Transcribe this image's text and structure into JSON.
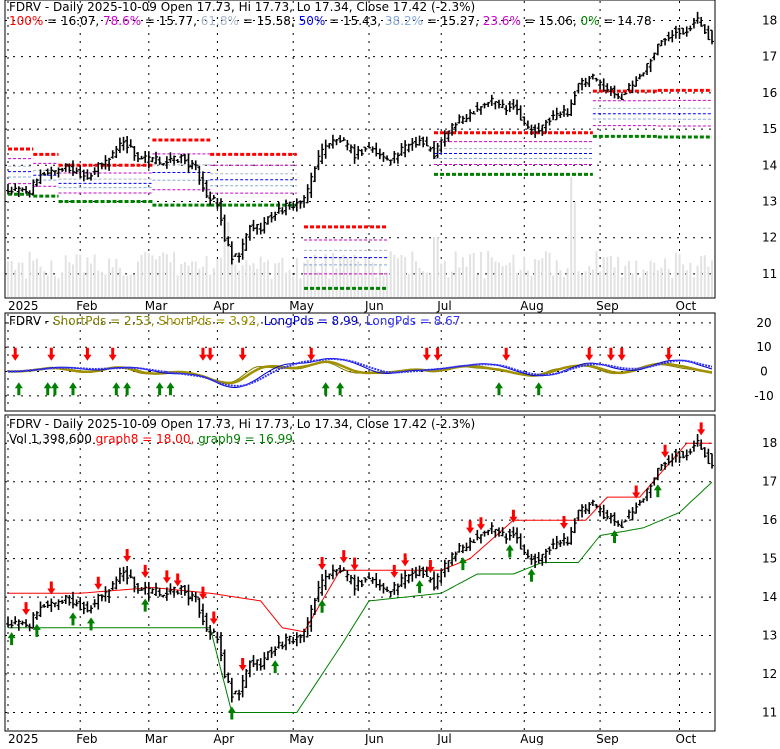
{
  "ticker": "FDRV",
  "colors": {
    "fib_100": "#ff0000",
    "fib_786": "#cc00cc",
    "fib_618": "#a9b6c8",
    "fib_50": "#0000ff",
    "fib_382": "#87a9d8",
    "fib_236": "#cc00cc",
    "fib_0": "#008000",
    "short1": "#808000",
    "short2": "#a09000",
    "long1": "#0000cc",
    "long2": "#3333ff",
    "graph8": "#ff0000",
    "graph9": "#008000",
    "up_arrow": "#008000",
    "down_arrow": "#ff0000"
  },
  "chart_data": [
    {
      "type": "ohlc",
      "panel": "price-fibonacci",
      "title_parts": {
        "prefix": "FDRV - Daily 2025-10-09 Open 17.73, Hi 17.73, Lo 17.34, Close 17.42 (-2.3%)"
      },
      "fib_legend": [
        {
          "label": "100%",
          "value": "= 16.07,",
          "color_key": "fib_100"
        },
        {
          "label": "78.6%",
          "value": "= 15.77,",
          "color_key": "fib_786"
        },
        {
          "label": "61.8%",
          "value": "= 15.58,",
          "color_key": "fib_618"
        },
        {
          "label": "50%",
          "value": "= 15.43,",
          "color_key": "fib_50"
        },
        {
          "label": "38.2%",
          "value": "= 15.27,",
          "color_key": "fib_382"
        },
        {
          "label": "23.6%",
          "value": "= 15.06,",
          "color_key": "fib_236"
        },
        {
          "label": "0%",
          "value": "= 14.78",
          "color_key": "fib_0"
        }
      ],
      "x_ticks": [
        "2025",
        "Feb",
        "Mar",
        "Apr",
        "May",
        "Jun",
        "Jul",
        "Aug",
        "Sep",
        "Oct"
      ],
      "y_ticks": [
        "18",
        "17",
        "16",
        "15",
        "14",
        "13",
        "12",
        "11"
      ],
      "ylim": [
        10.5,
        18.4
      ]
    },
    {
      "type": "line",
      "panel": "momentum",
      "legend": [
        {
          "text": "FDRV - ",
          "color_key": null
        },
        {
          "text": "ShortPds = 2.53,",
          "color_key": "short1"
        },
        {
          "text": "ShortPds = 3.92,",
          "color_key": "short2"
        },
        {
          "text": "LongPds = 8.99,",
          "color_key": "long1"
        },
        {
          "text": "LongPds = 8.67",
          "color_key": "long2"
        }
      ],
      "y_ticks": [
        "20",
        "10",
        "0",
        "-10"
      ],
      "ylim": [
        -15,
        22
      ]
    },
    {
      "type": "ohlc",
      "panel": "price-stops",
      "title": "FDRV - Daily 2025-10-09 Open 17.73, Hi 17.73, Lo 17.34, Close 17.42 (-2.3%)",
      "legend": [
        {
          "text": "Vol 1,398,600",
          "color_key": null
        },
        {
          "text": "graph8 = 18.00,",
          "color_key": "graph8"
        },
        {
          "text": "graph9 = 16.99",
          "color_key": "graph9"
        }
      ],
      "x_ticks": [
        "2025",
        "Feb",
        "Mar",
        "Apr",
        "May",
        "Jun",
        "Jul",
        "Aug",
        "Sep",
        "Oct"
      ],
      "y_ticks": [
        "18",
        "17",
        "16",
        "15",
        "14",
        "13",
        "12",
        "11"
      ],
      "ylim": [
        10.7,
        18.5
      ]
    }
  ]
}
